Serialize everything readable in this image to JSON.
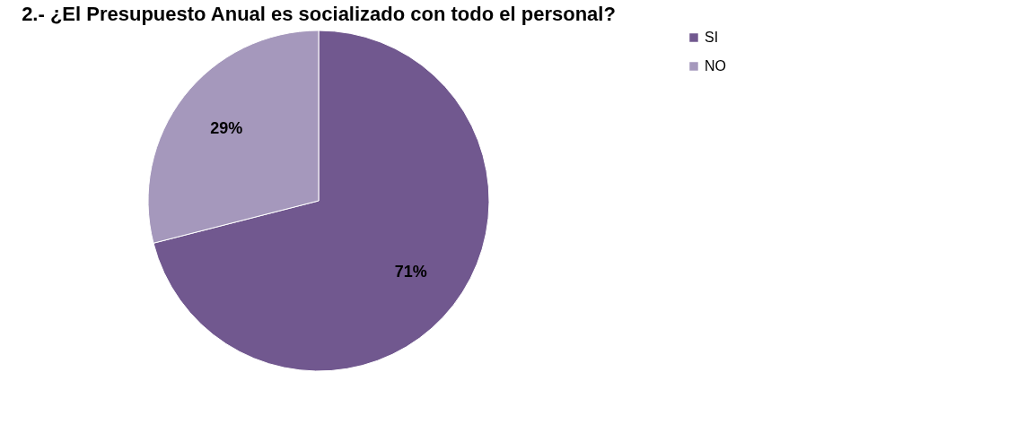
{
  "chart_data": {
    "type": "pie",
    "title": "2.-  ¿El Presupuesto Anual es socializado con todo el personal?",
    "categories": [
      "SI",
      "NO"
    ],
    "values": [
      71,
      29
    ],
    "colors": [
      "#71588f",
      "#a598bc"
    ],
    "value_labels": [
      "71%",
      "29%"
    ],
    "legend": "right"
  }
}
